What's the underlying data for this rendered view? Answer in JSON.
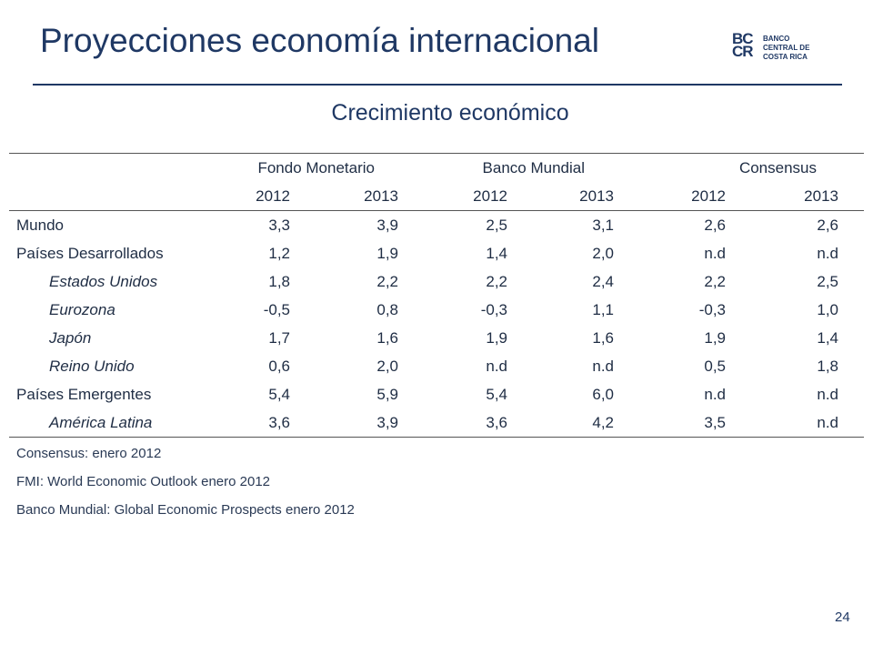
{
  "header": {
    "title": "Proyecciones economía internacional",
    "logo": {
      "mono_top": "BC",
      "mono_bottom": "CR",
      "line1": "BANCO",
      "line2": "CENTRAL DE",
      "line3": "COSTA RICA"
    }
  },
  "subtitle": "Crecimiento económico",
  "table": {
    "groups": [
      "Fondo Monetario",
      "Banco Mundial",
      "Consensus"
    ],
    "years": [
      "2012",
      "2013",
      "2012",
      "2013",
      "2012",
      "2013"
    ],
    "rows": [
      {
        "label": "Mundo",
        "values": [
          "3,3",
          "3,9",
          "2,5",
          "3,1",
          "2,6",
          "2,6"
        ]
      },
      {
        "label": "Países Desarrollados",
        "values": [
          "1,2",
          "1,9",
          "1,4",
          "2,0",
          "n.d",
          "n.d"
        ]
      },
      {
        "label": "Estados Unidos",
        "values": [
          "1,8",
          "2,2",
          "2,2",
          "2,4",
          "2,2",
          "2,5"
        ]
      },
      {
        "label": "Eurozona",
        "values": [
          "-0,5",
          "0,8",
          "-0,3",
          "1,1",
          "-0,3",
          "1,0"
        ]
      },
      {
        "label": "Japón",
        "values": [
          "1,7",
          "1,6",
          "1,9",
          "1,6",
          "1,9",
          "1,4"
        ]
      },
      {
        "label": "Reino Unido",
        "values": [
          "0,6",
          "2,0",
          "n.d",
          "n.d",
          "0,5",
          "1,8"
        ]
      },
      {
        "label": "Países Emergentes",
        "values": [
          "5,4",
          "5,9",
          "5,4",
          "6,0",
          "n.d",
          "n.d"
        ]
      },
      {
        "label": "América Latina",
        "values": [
          "3,6",
          "3,9",
          "3,6",
          "4,2",
          "3,5",
          "n.d"
        ]
      }
    ]
  },
  "notes": [
    "Consensus: enero 2012",
    "FMI: World Economic Outlook enero 2012",
    "Banco Mundial: Global Economic Prospects enero 2012"
  ],
  "page_number": "24",
  "colors": {
    "brand": "#1f3864",
    "text": "#1f2d44",
    "rule": "#555555"
  }
}
